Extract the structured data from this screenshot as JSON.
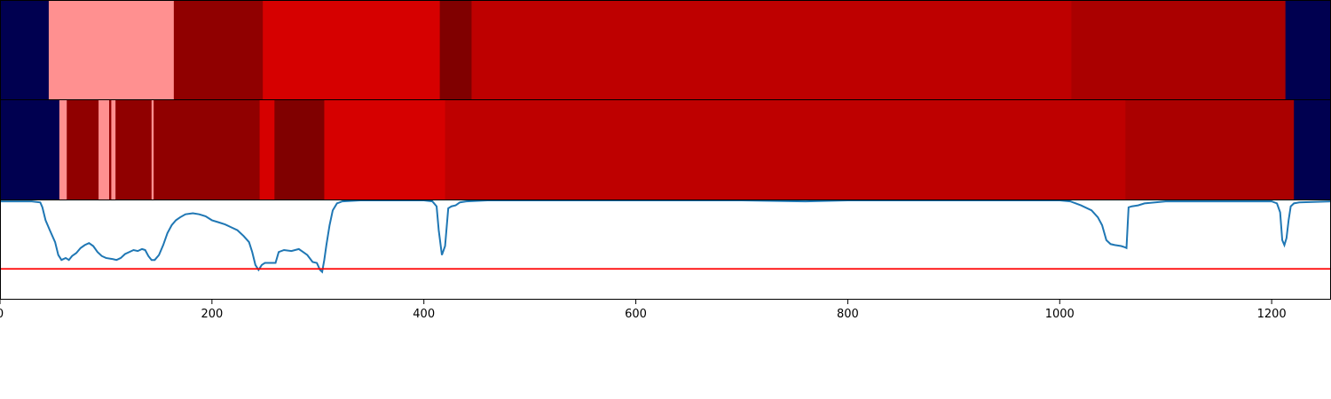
{
  "chart_data": {
    "type": "heatmap",
    "title": "",
    "xlabel": "",
    "ylabel": "",
    "x_range": [
      0,
      1256
    ],
    "x_ticks": [
      0,
      200,
      400,
      600,
      800,
      1000,
      1200
    ],
    "x_tick_labels": [
      "0",
      "200",
      "400",
      "600",
      "800",
      "1000",
      "1200"
    ],
    "grid": false,
    "legend": "none",
    "colors": {
      "navy": "#000050",
      "pink": "#ff9090",
      "dark_red": "#900000",
      "maroon": "#800000",
      "bright_red": "#d60000",
      "red": "#be0000",
      "red2": "#aa0000",
      "line": "#1f77b4",
      "threshold": "#ff0000"
    },
    "strip_1": [
      {
        "start": 0,
        "end": 46,
        "color": "navy"
      },
      {
        "start": 46,
        "end": 164,
        "color": "pink"
      },
      {
        "start": 164,
        "end": 248,
        "color": "dark_red"
      },
      {
        "start": 248,
        "end": 415,
        "color": "bright_red"
      },
      {
        "start": 415,
        "end": 445,
        "color": "maroon"
      },
      {
        "start": 445,
        "end": 1011,
        "color": "red"
      },
      {
        "start": 1011,
        "end": 1213,
        "color": "red2"
      },
      {
        "start": 1213,
        "end": 1256,
        "color": "navy"
      }
    ],
    "strip_2": [
      {
        "start": 0,
        "end": 56,
        "color": "navy"
      },
      {
        "start": 56,
        "end": 63,
        "color": "pink"
      },
      {
        "start": 63,
        "end": 93,
        "color": "dark_red"
      },
      {
        "start": 93,
        "end": 103,
        "color": "pink"
      },
      {
        "start": 103,
        "end": 105,
        "color": "dark_red"
      },
      {
        "start": 105,
        "end": 109,
        "color": "pink"
      },
      {
        "start": 109,
        "end": 143,
        "color": "dark_red"
      },
      {
        "start": 143,
        "end": 145,
        "color": "pink"
      },
      {
        "start": 145,
        "end": 245,
        "color": "dark_red"
      },
      {
        "start": 245,
        "end": 259,
        "color": "bright_red"
      },
      {
        "start": 259,
        "end": 306,
        "color": "maroon"
      },
      {
        "start": 306,
        "end": 420,
        "color": "bright_red"
      },
      {
        "start": 420,
        "end": 1062,
        "color": "red"
      },
      {
        "start": 1062,
        "end": 1221,
        "color": "red2"
      },
      {
        "start": 1221,
        "end": 1256,
        "color": "navy"
      }
    ],
    "series": [
      {
        "y_range": [
          0,
          1
        ],
        "threshold": 0.31,
        "points": [
          [
            0,
            0.99
          ],
          [
            30,
            0.99
          ],
          [
            38,
            0.98
          ],
          [
            40,
            0.93
          ],
          [
            43,
            0.8
          ],
          [
            47,
            0.7
          ],
          [
            52,
            0.58
          ],
          [
            55,
            0.45
          ],
          [
            58,
            0.4
          ],
          [
            62,
            0.42
          ],
          [
            65,
            0.4
          ],
          [
            68,
            0.44
          ],
          [
            72,
            0.47
          ],
          [
            76,
            0.52
          ],
          [
            80,
            0.55
          ],
          [
            84,
            0.57
          ],
          [
            88,
            0.54
          ],
          [
            92,
            0.48
          ],
          [
            96,
            0.44
          ],
          [
            100,
            0.42
          ],
          [
            106,
            0.41
          ],
          [
            110,
            0.4
          ],
          [
            114,
            0.42
          ],
          [
            118,
            0.46
          ],
          [
            122,
            0.48
          ],
          [
            126,
            0.5
          ],
          [
            130,
            0.49
          ],
          [
            134,
            0.51
          ],
          [
            137,
            0.5
          ],
          [
            140,
            0.44
          ],
          [
            143,
            0.4
          ],
          [
            146,
            0.4
          ],
          [
            150,
            0.45
          ],
          [
            154,
            0.55
          ],
          [
            158,
            0.67
          ],
          [
            162,
            0.75
          ],
          [
            166,
            0.8
          ],
          [
            170,
            0.83
          ],
          [
            175,
            0.86
          ],
          [
            182,
            0.87
          ],
          [
            188,
            0.86
          ],
          [
            194,
            0.84
          ],
          [
            200,
            0.8
          ],
          [
            206,
            0.78
          ],
          [
            212,
            0.76
          ],
          [
            218,
            0.73
          ],
          [
            224,
            0.7
          ],
          [
            230,
            0.64
          ],
          [
            235,
            0.58
          ],
          [
            238,
            0.48
          ],
          [
            241,
            0.35
          ],
          [
            244,
            0.3
          ],
          [
            247,
            0.35
          ],
          [
            250,
            0.37
          ],
          [
            257,
            0.37
          ],
          [
            260,
            0.37
          ],
          [
            263,
            0.48
          ],
          [
            268,
            0.5
          ],
          [
            275,
            0.49
          ],
          [
            282,
            0.51
          ],
          [
            286,
            0.48
          ],
          [
            290,
            0.45
          ],
          [
            295,
            0.38
          ],
          [
            299,
            0.37
          ],
          [
            302,
            0.3
          ],
          [
            304,
            0.28
          ],
          [
            306,
            0.4
          ],
          [
            308,
            0.55
          ],
          [
            311,
            0.75
          ],
          [
            314,
            0.9
          ],
          [
            318,
            0.97
          ],
          [
            323,
            0.99
          ],
          [
            340,
            1.0
          ],
          [
            400,
            1.0
          ],
          [
            408,
            0.99
          ],
          [
            412,
            0.94
          ],
          [
            414,
            0.7
          ],
          [
            417,
            0.45
          ],
          [
            420,
            0.54
          ],
          [
            423,
            0.92
          ],
          [
            426,
            0.94
          ],
          [
            430,
            0.95
          ],
          [
            434,
            0.98
          ],
          [
            440,
            0.99
          ],
          [
            460,
            1.0
          ],
          [
            700,
            1.0
          ],
          [
            760,
            0.99
          ],
          [
            800,
            1.0
          ],
          [
            1000,
            1.0
          ],
          [
            1010,
            0.99
          ],
          [
            1020,
            0.95
          ],
          [
            1030,
            0.9
          ],
          [
            1036,
            0.83
          ],
          [
            1040,
            0.75
          ],
          [
            1044,
            0.6
          ],
          [
            1048,
            0.56
          ],
          [
            1052,
            0.55
          ],
          [
            1058,
            0.54
          ],
          [
            1061,
            0.53
          ],
          [
            1063,
            0.52
          ],
          [
            1065,
            0.93
          ],
          [
            1068,
            0.94
          ],
          [
            1074,
            0.95
          ],
          [
            1080,
            0.97
          ],
          [
            1090,
            0.98
          ],
          [
            1100,
            0.99
          ],
          [
            1200,
            0.99
          ],
          [
            1205,
            0.97
          ],
          [
            1208,
            0.88
          ],
          [
            1210,
            0.6
          ],
          [
            1212,
            0.55
          ],
          [
            1214,
            0.62
          ],
          [
            1216,
            0.8
          ],
          [
            1218,
            0.94
          ],
          [
            1221,
            0.97
          ],
          [
            1226,
            0.98
          ],
          [
            1256,
            0.99
          ]
        ]
      }
    ]
  }
}
